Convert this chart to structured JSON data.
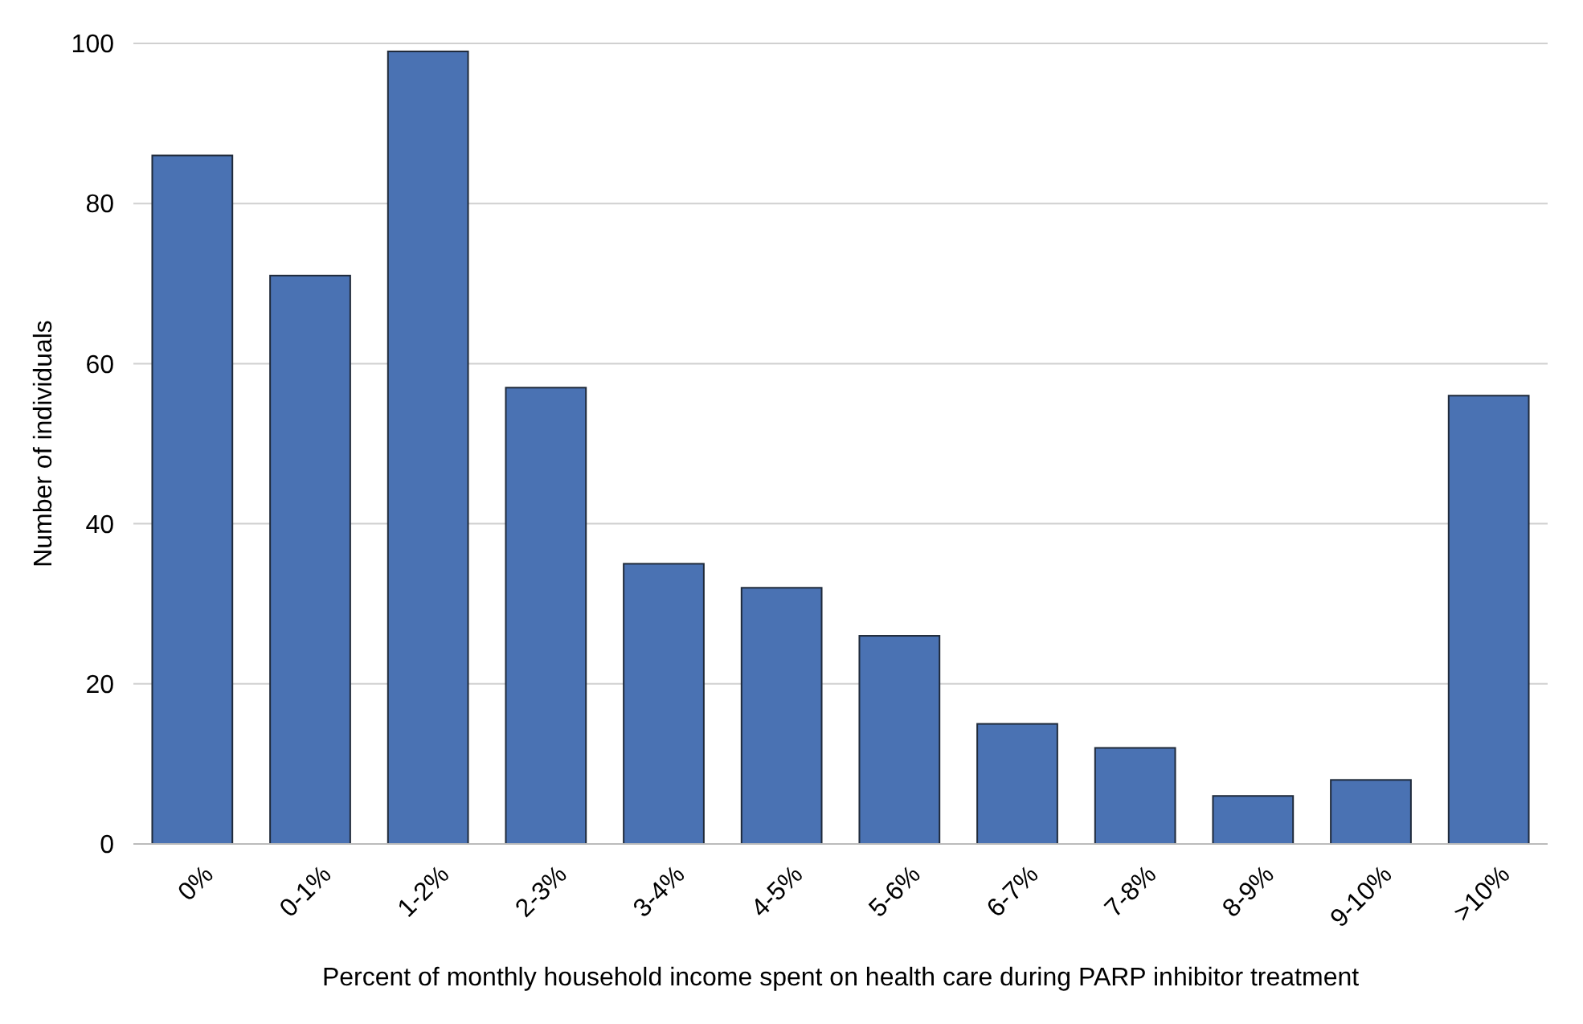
{
  "chart_data": {
    "type": "bar",
    "xlabel": "Percent of monthly household income spent on health care during PARP inhibitor treatment",
    "ylabel": "Number of individuals",
    "categories": [
      "0%",
      "0-1%",
      "1-2%",
      "2-3%",
      "3-4%",
      "4-5%",
      "5-6%",
      "6-7%",
      "7-8%",
      "8-9%",
      "9-10%",
      ">10%"
    ],
    "values": [
      86,
      71,
      99,
      57,
      35,
      32,
      26,
      15,
      12,
      6,
      8,
      56
    ],
    "color": "#4a72b3",
    "ylim": [
      0,
      100
    ],
    "yticks": [
      0,
      20,
      40,
      60,
      80,
      100
    ],
    "grid": "y"
  }
}
